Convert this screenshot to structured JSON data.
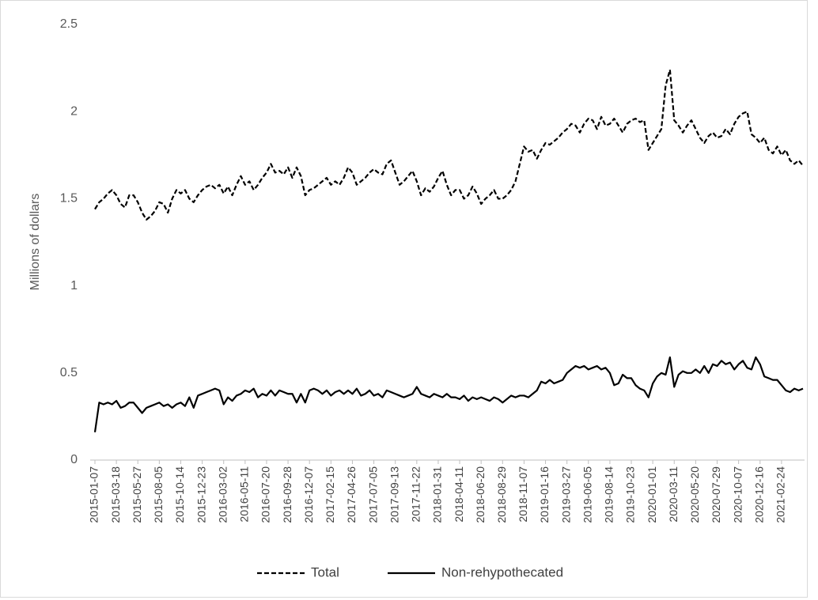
{
  "chart_data": {
    "type": "line",
    "ylabel": "Millions of dollars",
    "ylim": [
      0,
      2.5
    ],
    "yticks": [
      0,
      0.5,
      1,
      1.5,
      2,
      2.5
    ],
    "grid": false,
    "legend_position": "bottom",
    "categories": [
      "2015-01-07",
      null,
      null,
      null,
      null,
      "2015-03-18",
      null,
      null,
      null,
      null,
      "2015-05-27",
      null,
      null,
      null,
      null,
      "2015-08-05",
      null,
      null,
      null,
      null,
      "2015-10-14",
      null,
      null,
      null,
      null,
      "2015-12-23",
      null,
      null,
      null,
      null,
      "2016-03-02",
      null,
      null,
      null,
      null,
      "2016-05-11",
      null,
      null,
      null,
      null,
      "2016-07-20",
      null,
      null,
      null,
      null,
      "2016-09-28",
      null,
      null,
      null,
      null,
      "2016-12-07",
      null,
      null,
      null,
      null,
      "2017-02-15",
      null,
      null,
      null,
      null,
      "2017-04-26",
      null,
      null,
      null,
      null,
      "2017-07-05",
      null,
      null,
      null,
      null,
      "2017-09-13",
      null,
      null,
      null,
      null,
      "2017-11-22",
      null,
      null,
      null,
      null,
      "2018-01-31",
      null,
      null,
      null,
      null,
      "2018-04-11",
      null,
      null,
      null,
      null,
      "2018-06-20",
      null,
      null,
      null,
      null,
      "2018-08-29",
      null,
      null,
      null,
      null,
      "2018-11-07",
      null,
      null,
      null,
      null,
      "2019-01-16",
      null,
      null,
      null,
      null,
      "2019-03-27",
      null,
      null,
      null,
      null,
      "2019-06-05",
      null,
      null,
      null,
      null,
      "2019-08-14",
      null,
      null,
      null,
      null,
      "2019-10-23",
      null,
      null,
      null,
      null,
      "2020-01-01",
      null,
      null,
      null,
      null,
      "2020-03-11",
      null,
      null,
      null,
      null,
      "2020-05-20",
      null,
      null,
      null,
      null,
      "2020-07-29",
      null,
      null,
      null,
      null,
      "2020-10-07",
      null,
      null,
      null,
      null,
      "2020-12-16",
      null,
      null,
      null,
      null,
      "2021-02-24",
      null,
      null,
      null,
      null,
      null
    ],
    "series": [
      {
        "name": "Total",
        "color": "#000000",
        "line_style": "dashed",
        "values": [
          1.44,
          1.48,
          1.5,
          1.53,
          1.55,
          1.52,
          1.47,
          1.45,
          1.52,
          1.52,
          1.48,
          1.42,
          1.38,
          1.4,
          1.43,
          1.48,
          1.47,
          1.42,
          1.5,
          1.55,
          1.53,
          1.55,
          1.5,
          1.48,
          1.52,
          1.55,
          1.57,
          1.58,
          1.56,
          1.58,
          1.53,
          1.57,
          1.52,
          1.58,
          1.63,
          1.58,
          1.6,
          1.55,
          1.58,
          1.62,
          1.65,
          1.7,
          1.65,
          1.66,
          1.64,
          1.68,
          1.62,
          1.68,
          1.63,
          1.52,
          1.55,
          1.56,
          1.58,
          1.6,
          1.62,
          1.58,
          1.6,
          1.58,
          1.62,
          1.68,
          1.65,
          1.58,
          1.6,
          1.62,
          1.65,
          1.67,
          1.65,
          1.64,
          1.7,
          1.72,
          1.65,
          1.58,
          1.6,
          1.63,
          1.66,
          1.6,
          1.52,
          1.56,
          1.54,
          1.57,
          1.62,
          1.66,
          1.58,
          1.52,
          1.55,
          1.55,
          1.5,
          1.52,
          1.57,
          1.53,
          1.47,
          1.5,
          1.52,
          1.55,
          1.5,
          1.5,
          1.52,
          1.55,
          1.6,
          1.7,
          1.8,
          1.77,
          1.78,
          1.73,
          1.78,
          1.82,
          1.81,
          1.83,
          1.85,
          1.88,
          1.9,
          1.93,
          1.92,
          1.88,
          1.93,
          1.96,
          1.95,
          1.9,
          1.97,
          1.92,
          1.93,
          1.96,
          1.92,
          1.88,
          1.93,
          1.95,
          1.96,
          1.94,
          1.95,
          1.78,
          1.82,
          1.86,
          1.9,
          2.15,
          2.24,
          1.95,
          1.92,
          1.88,
          1.92,
          1.95,
          1.9,
          1.85,
          1.82,
          1.86,
          1.88,
          1.85,
          1.86,
          1.9,
          1.87,
          1.93,
          1.97,
          1.99,
          2.0,
          1.87,
          1.85,
          1.82,
          1.85,
          1.78,
          1.76,
          1.8,
          1.75,
          1.78,
          1.72,
          1.7,
          1.72,
          1.69
        ]
      },
      {
        "name": "Non-rehypothecated",
        "color": "#000000",
        "line_style": "solid",
        "values": [
          0.16,
          0.33,
          0.32,
          0.33,
          0.32,
          0.34,
          0.3,
          0.31,
          0.33,
          0.33,
          0.3,
          0.27,
          0.3,
          0.31,
          0.32,
          0.33,
          0.31,
          0.32,
          0.3,
          0.32,
          0.33,
          0.31,
          0.36,
          0.3,
          0.37,
          0.38,
          0.39,
          0.4,
          0.41,
          0.4,
          0.32,
          0.36,
          0.34,
          0.37,
          0.38,
          0.4,
          0.39,
          0.41,
          0.36,
          0.38,
          0.37,
          0.4,
          0.37,
          0.4,
          0.39,
          0.38,
          0.38,
          0.33,
          0.38,
          0.33,
          0.4,
          0.41,
          0.4,
          0.38,
          0.4,
          0.37,
          0.39,
          0.4,
          0.38,
          0.4,
          0.38,
          0.41,
          0.37,
          0.38,
          0.4,
          0.37,
          0.38,
          0.36,
          0.4,
          0.39,
          0.38,
          0.37,
          0.36,
          0.37,
          0.38,
          0.42,
          0.38,
          0.37,
          0.36,
          0.38,
          0.37,
          0.36,
          0.38,
          0.36,
          0.36,
          0.35,
          0.37,
          0.34,
          0.36,
          0.35,
          0.36,
          0.35,
          0.34,
          0.36,
          0.35,
          0.33,
          0.35,
          0.37,
          0.36,
          0.37,
          0.37,
          0.36,
          0.38,
          0.4,
          0.45,
          0.44,
          0.46,
          0.44,
          0.45,
          0.46,
          0.5,
          0.52,
          0.54,
          0.53,
          0.54,
          0.52,
          0.53,
          0.54,
          0.52,
          0.53,
          0.5,
          0.43,
          0.44,
          0.49,
          0.47,
          0.47,
          0.43,
          0.41,
          0.4,
          0.36,
          0.44,
          0.48,
          0.5,
          0.49,
          0.59,
          0.42,
          0.49,
          0.51,
          0.5,
          0.5,
          0.52,
          0.5,
          0.54,
          0.5,
          0.55,
          0.54,
          0.57,
          0.55,
          0.56,
          0.52,
          0.55,
          0.57,
          0.53,
          0.52,
          0.59,
          0.55,
          0.48,
          0.47,
          0.46,
          0.46,
          0.43,
          0.4,
          0.39,
          0.41,
          0.4,
          0.41
        ]
      }
    ]
  }
}
